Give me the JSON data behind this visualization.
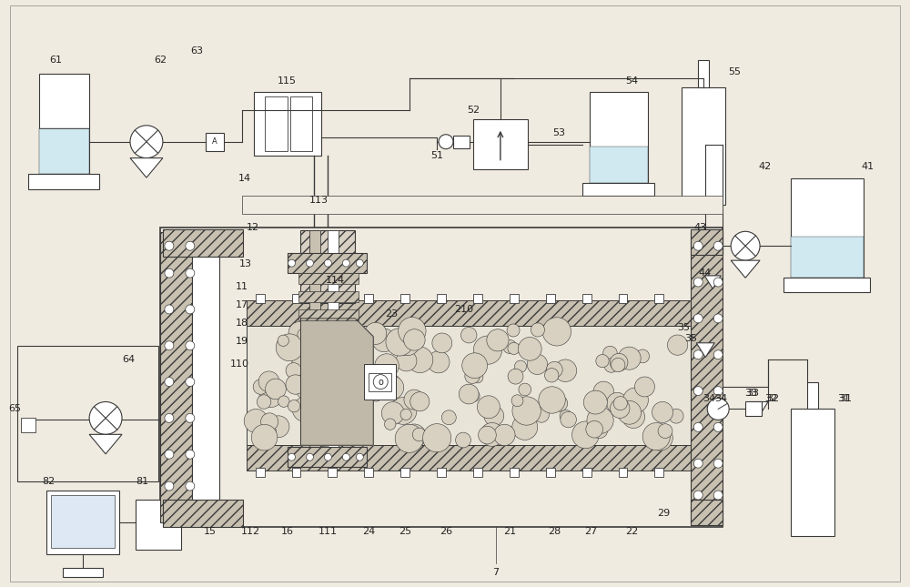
{
  "bg_color": "#f0ebe0",
  "line_color": "#3a3a3a",
  "figsize": [
    10.0,
    6.45
  ],
  "dpi": 100
}
